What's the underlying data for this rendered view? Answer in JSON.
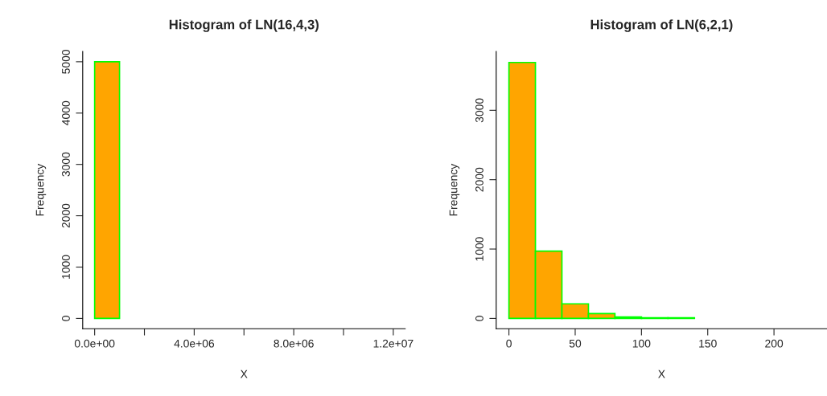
{
  "chart_data": [
    {
      "type": "histogram",
      "title": "Histogram of LN(16,4,3)",
      "xlabel": "X",
      "ylabel": "Frequency",
      "color": "#ffa500",
      "bins": [
        0,
        1000000,
        2000000,
        3000000,
        4000000,
        5000000,
        6000000,
        7000000,
        8000000,
        9000000,
        10000000,
        11000000,
        12000000
      ],
      "values": [
        5000,
        0,
        0,
        0,
        0,
        0,
        0,
        0,
        0,
        0,
        0,
        0
      ],
      "xlim": [
        -480000,
        12480000
      ],
      "ylim": [
        -200,
        5200
      ],
      "xticks": [
        {
          "value": 0,
          "label": "0.0e+00"
        },
        {
          "value": 2000000,
          "label": null
        },
        {
          "value": 4000000,
          "label": "4.0e+06"
        },
        {
          "value": 6000000,
          "label": null
        },
        {
          "value": 8000000,
          "label": "8.0e+06"
        },
        {
          "value": 10000000,
          "label": null
        },
        {
          "value": 12000000,
          "label": "1.2e+07"
        }
      ],
      "yticks": [
        0,
        1000,
        2000,
        3000,
        4000,
        5000
      ],
      "grid": false
    },
    {
      "type": "histogram",
      "title": "Histogram of LN(6,2,1)",
      "xlabel": "X",
      "ylabel": "Frequency",
      "color": "#ffa500",
      "bins": [
        0,
        20,
        40,
        60,
        80,
        100,
        120,
        140,
        160,
        180,
        200,
        220,
        240
      ],
      "values": [
        3690,
        970,
        210,
        70,
        20,
        10,
        10,
        0,
        0,
        0,
        0,
        0
      ],
      "xlim": [
        -9.6,
        240
      ],
      "ylim": [
        -148,
        3848
      ],
      "xticks": [
        0,
        50,
        100,
        150,
        200
      ],
      "yticks": [
        0,
        1000,
        2000,
        3000
      ],
      "grid": false
    }
  ]
}
